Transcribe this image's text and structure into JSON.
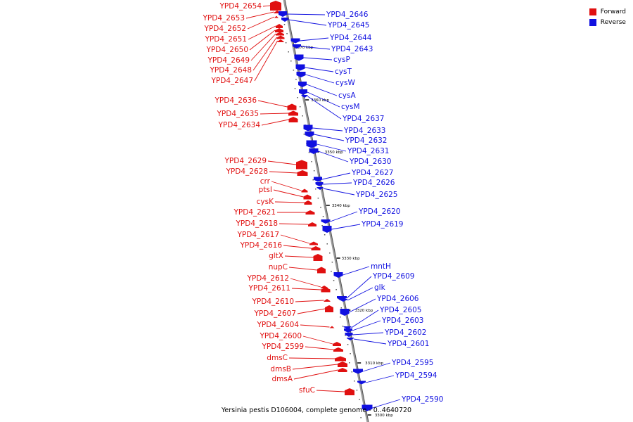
{
  "caption": "Yersinia pestis D106004, complete genome - 0..4640720",
  "legend": [
    {
      "label": "Forward",
      "color": "#e01010"
    },
    {
      "label": "Reverse",
      "color": "#1010e0"
    }
  ],
  "colors": {
    "forward": "#e01010",
    "reverse": "#1010e0",
    "axis": "#888888"
  },
  "ticks": [
    "3370 kbp",
    "3360 kbp",
    "3350 kbp",
    "3340 kbp",
    "3330 kbp",
    "3320 kbp",
    "3310 kbp",
    "3300 kbp"
  ],
  "forward_genes": [
    "YPD4_2654",
    "YPD4_2653",
    "YPD4_2652",
    "YPD4_2651",
    "YPD4_2650",
    "YPD4_2649",
    "YPD4_2648",
    "YPD4_2647",
    "YPD4_2636",
    "YPD4_2635",
    "YPD4_2634",
    "YPD4_2629",
    "YPD4_2628",
    "crr",
    "ptsI",
    "cysK",
    "YPD4_2621",
    "YPD4_2618",
    "YPD4_2617",
    "YPD4_2616",
    "gltX",
    "nupC",
    "YPD4_2612",
    "YPD4_2611",
    "YPD4_2610",
    "YPD4_2607",
    "YPD4_2604",
    "YPD4_2600",
    "YPD4_2599",
    "dmsC",
    "dmsB",
    "dmsA",
    "sfuC"
  ],
  "reverse_genes": [
    "YPD4_2646",
    "YPD4_2645",
    "YPD4_2644",
    "YPD4_2643",
    "cysP",
    "cysT",
    "cysW",
    "cysA",
    "cysM",
    "YPD4_2637",
    "YPD4_2633",
    "YPD4_2632",
    "YPD4_2631",
    "YPD4_2630",
    "YPD4_2627",
    "YPD4_2626",
    "YPD4_2625",
    "YPD4_2620",
    "YPD4_2619",
    "mntH",
    "YPD4_2609",
    "glk",
    "YPD4_2606",
    "YPD4_2605",
    "YPD4_2603",
    "YPD4_2602",
    "YPD4_2601",
    "YPD4_2595",
    "YPD4_2594",
    "YPD4_2590"
  ]
}
